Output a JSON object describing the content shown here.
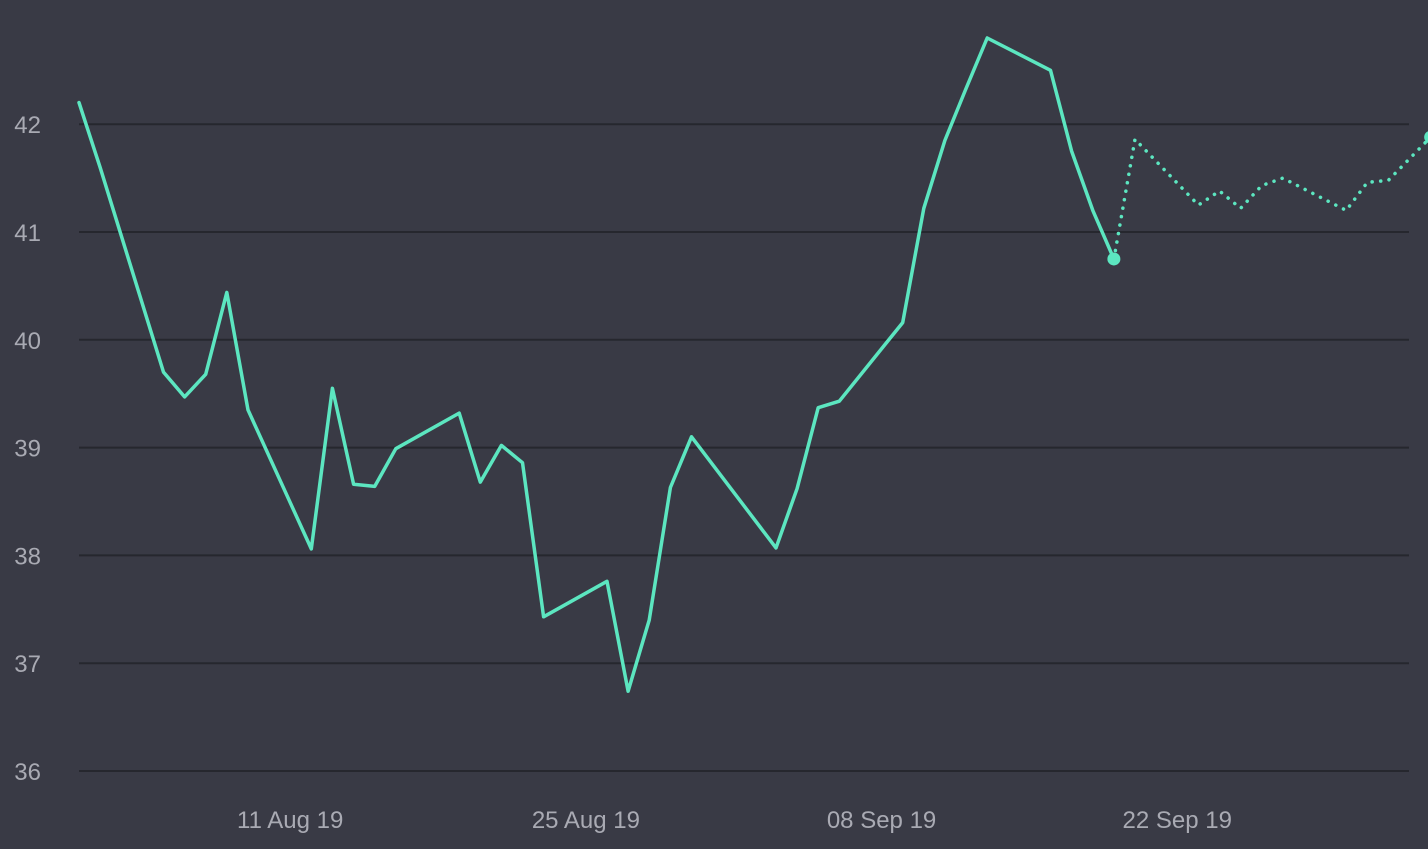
{
  "chart_data": {
    "type": "line",
    "title": "",
    "xlabel": "",
    "ylabel": "",
    "ylim": [
      36,
      42.8
    ],
    "xlim": [
      "2019-08-01",
      "2019-10-04"
    ],
    "y_ticks": [
      "36",
      "37",
      "38",
      "39",
      "40",
      "41",
      "42"
    ],
    "x_ticks": [
      {
        "label": "11 Aug 19",
        "date": "2019-08-11"
      },
      {
        "label": "25 Aug 19",
        "date": "2019-08-25"
      },
      {
        "label": "08 Sep 19",
        "date": "2019-09-08"
      },
      {
        "label": "22 Sep 19",
        "date": "2019-09-22"
      }
    ],
    "grid": true,
    "legend": "none",
    "colors": {
      "background": "#393a45",
      "grid": "#26272e",
      "line": "#5ce6c0",
      "text": "#a9aab3"
    },
    "series": [
      {
        "style": "solid",
        "points": [
          {
            "x": "2019-08-01",
            "y": 42.2
          },
          {
            "x": "2019-08-02",
            "y": 41.6
          },
          {
            "x": "2019-08-05",
            "y": 39.7
          },
          {
            "x": "2019-08-06",
            "y": 39.47
          },
          {
            "x": "2019-08-07",
            "y": 39.68
          },
          {
            "x": "2019-08-08",
            "y": 40.44
          },
          {
            "x": "2019-08-09",
            "y": 39.35
          },
          {
            "x": "2019-08-12",
            "y": 38.06
          },
          {
            "x": "2019-08-13",
            "y": 39.55
          },
          {
            "x": "2019-08-14",
            "y": 38.66
          },
          {
            "x": "2019-08-15",
            "y": 38.64
          },
          {
            "x": "2019-08-16",
            "y": 38.99
          },
          {
            "x": "2019-08-19",
            "y": 39.32
          },
          {
            "x": "2019-08-20",
            "y": 38.68
          },
          {
            "x": "2019-08-21",
            "y": 39.02
          },
          {
            "x": "2019-08-22",
            "y": 38.86
          },
          {
            "x": "2019-08-23",
            "y": 37.43
          },
          {
            "x": "2019-08-26",
            "y": 37.76
          },
          {
            "x": "2019-08-27",
            "y": 36.74
          },
          {
            "x": "2019-08-28",
            "y": 37.4
          },
          {
            "x": "2019-08-29",
            "y": 38.63
          },
          {
            "x": "2019-08-30",
            "y": 39.1
          },
          {
            "x": "2019-09-03",
            "y": 38.07
          },
          {
            "x": "2019-09-04",
            "y": 38.62
          },
          {
            "x": "2019-09-05",
            "y": 39.37
          },
          {
            "x": "2019-09-06",
            "y": 39.43
          },
          {
            "x": "2019-09-09",
            "y": 40.16
          },
          {
            "x": "2019-09-10",
            "y": 41.22
          },
          {
            "x": "2019-09-11",
            "y": 41.85
          },
          {
            "x": "2019-09-12",
            "y": 42.33
          },
          {
            "x": "2019-09-13",
            "y": 42.8
          },
          {
            "x": "2019-09-16",
            "y": 42.5
          },
          {
            "x": "2019-09-17",
            "y": 41.75
          },
          {
            "x": "2019-09-18",
            "y": 41.2
          },
          {
            "x": "2019-09-19",
            "y": 40.75
          }
        ]
      },
      {
        "style": "dotted",
        "points": [
          {
            "x": "2019-09-19",
            "y": 40.75
          },
          {
            "x": "2019-09-20",
            "y": 41.86
          },
          {
            "x": "2019-09-23",
            "y": 41.25
          },
          {
            "x": "2019-09-24",
            "y": 41.38
          },
          {
            "x": "2019-09-25",
            "y": 41.22
          },
          {
            "x": "2019-09-26",
            "y": 41.43
          },
          {
            "x": "2019-09-27",
            "y": 41.5
          },
          {
            "x": "2019-09-30",
            "y": 41.2
          },
          {
            "x": "2019-10-01",
            "y": 41.46
          },
          {
            "x": "2019-10-02",
            "y": 41.48
          },
          {
            "x": "2019-10-04",
            "y": 41.88
          }
        ]
      }
    ],
    "markers": [
      {
        "x": "2019-09-19",
        "y": 40.75
      },
      {
        "x": "2019-10-04",
        "y": 41.88
      }
    ]
  }
}
